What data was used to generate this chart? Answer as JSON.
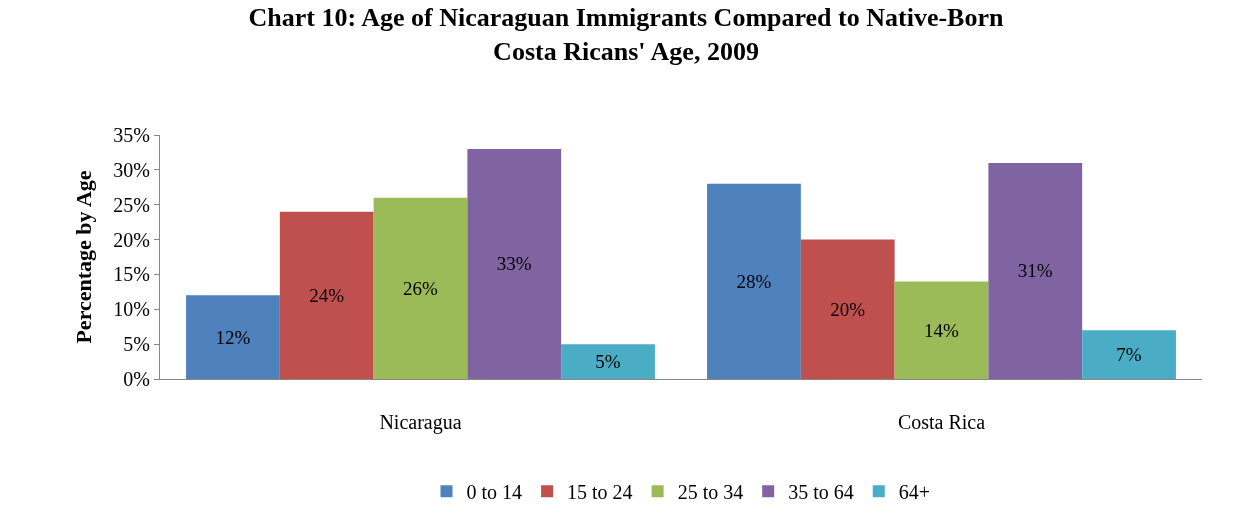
{
  "chart_data": {
    "type": "bar",
    "title": "Chart 10: Age of Nicaraguan Immigrants Compared to Native-Born\nCosta Ricans' Age, 2009",
    "ylabel": "Percentage by Age",
    "categories": [
      "Nicaragua",
      "Costa Rica"
    ],
    "series": [
      {
        "name": "0 to 14",
        "color": "#4f81bd",
        "values": [
          12,
          28
        ],
        "value_labels": [
          "12%",
          "28%"
        ]
      },
      {
        "name": "15 to 24",
        "color": "#c0504d",
        "values": [
          24,
          20
        ],
        "value_labels": [
          "24%",
          "20%"
        ]
      },
      {
        "name": "25 to 34",
        "color": "#9bbb59",
        "values": [
          26,
          14
        ],
        "value_labels": [
          "26%",
          "14%"
        ]
      },
      {
        "name": "35 to 64",
        "color": "#8064a2",
        "values": [
          33,
          31
        ],
        "value_labels": [
          "33%",
          "31%"
        ]
      },
      {
        "name": "64+",
        "color": "#4bacc6",
        "values": [
          5,
          7
        ],
        "value_labels": [
          "5%",
          "7%"
        ]
      }
    ],
    "ylim": [
      0,
      35
    ],
    "yticks": [
      {
        "value": 0,
        "label": "0%"
      },
      {
        "value": 5,
        "label": "5%"
      },
      {
        "value": 10,
        "label": "10%"
      },
      {
        "value": 15,
        "label": "15%"
      },
      {
        "value": 20,
        "label": "20%"
      },
      {
        "value": 25,
        "label": "25%"
      },
      {
        "value": 30,
        "label": "30%"
      },
      {
        "value": 35,
        "label": "35%"
      }
    ],
    "legend": "bottom"
  }
}
